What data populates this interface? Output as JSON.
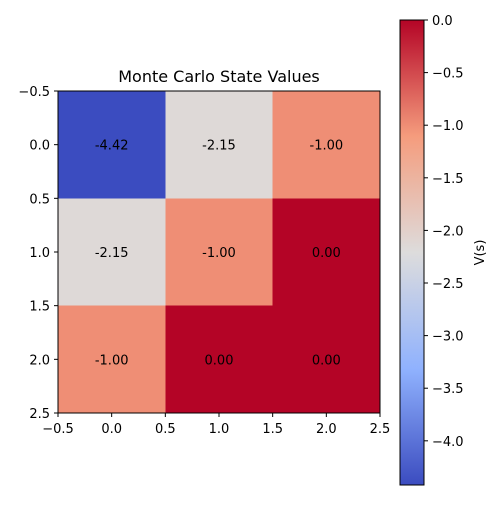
{
  "chart_data": {
    "type": "heatmap",
    "title": "Monte Carlo State Values",
    "rows": [
      0,
      1,
      2
    ],
    "cols": [
      0,
      1,
      2
    ],
    "values": [
      [
        -4.42,
        -2.15,
        -1.0
      ],
      [
        -2.15,
        -1.0,
        0.0
      ],
      [
        -1.0,
        0.0,
        0.0
      ]
    ],
    "value_labels": [
      [
        "-4.42",
        "-2.15",
        "-1.00"
      ],
      [
        "-2.15",
        "-1.00",
        "0.00"
      ],
      [
        "-1.00",
        "0.00",
        "0.00"
      ]
    ],
    "xlim": [
      -0.5,
      2.5
    ],
    "ylim": [
      2.5,
      -0.5
    ],
    "x_ticks": [
      -0.5,
      0.0,
      0.5,
      1.0,
      1.5,
      2.0,
      2.5
    ],
    "x_tick_labels": [
      "−0.5",
      "0.0",
      "0.5",
      "1.0",
      "1.5",
      "2.0",
      "2.5"
    ],
    "y_ticks": [
      -0.5,
      0.0,
      0.5,
      1.0,
      1.5,
      2.0,
      2.5
    ],
    "y_tick_labels": [
      "−0.5",
      "0.0",
      "0.5",
      "1.0",
      "1.5",
      "2.0",
      "2.5"
    ],
    "colormap": "coolwarm",
    "colorbar": {
      "label": "V(s)",
      "vmin": -4.42,
      "vmax": 0.0,
      "ticks": [
        0.0,
        -0.5,
        -1.0,
        -1.5,
        -2.0,
        -2.5,
        -3.0,
        -3.5,
        -4.0
      ],
      "tick_labels": [
        "0.0",
        "−0.5",
        "−1.0",
        "−1.5",
        "−2.0",
        "−2.5",
        "−3.0",
        "−3.5",
        "−4.0"
      ]
    },
    "grid": false
  }
}
